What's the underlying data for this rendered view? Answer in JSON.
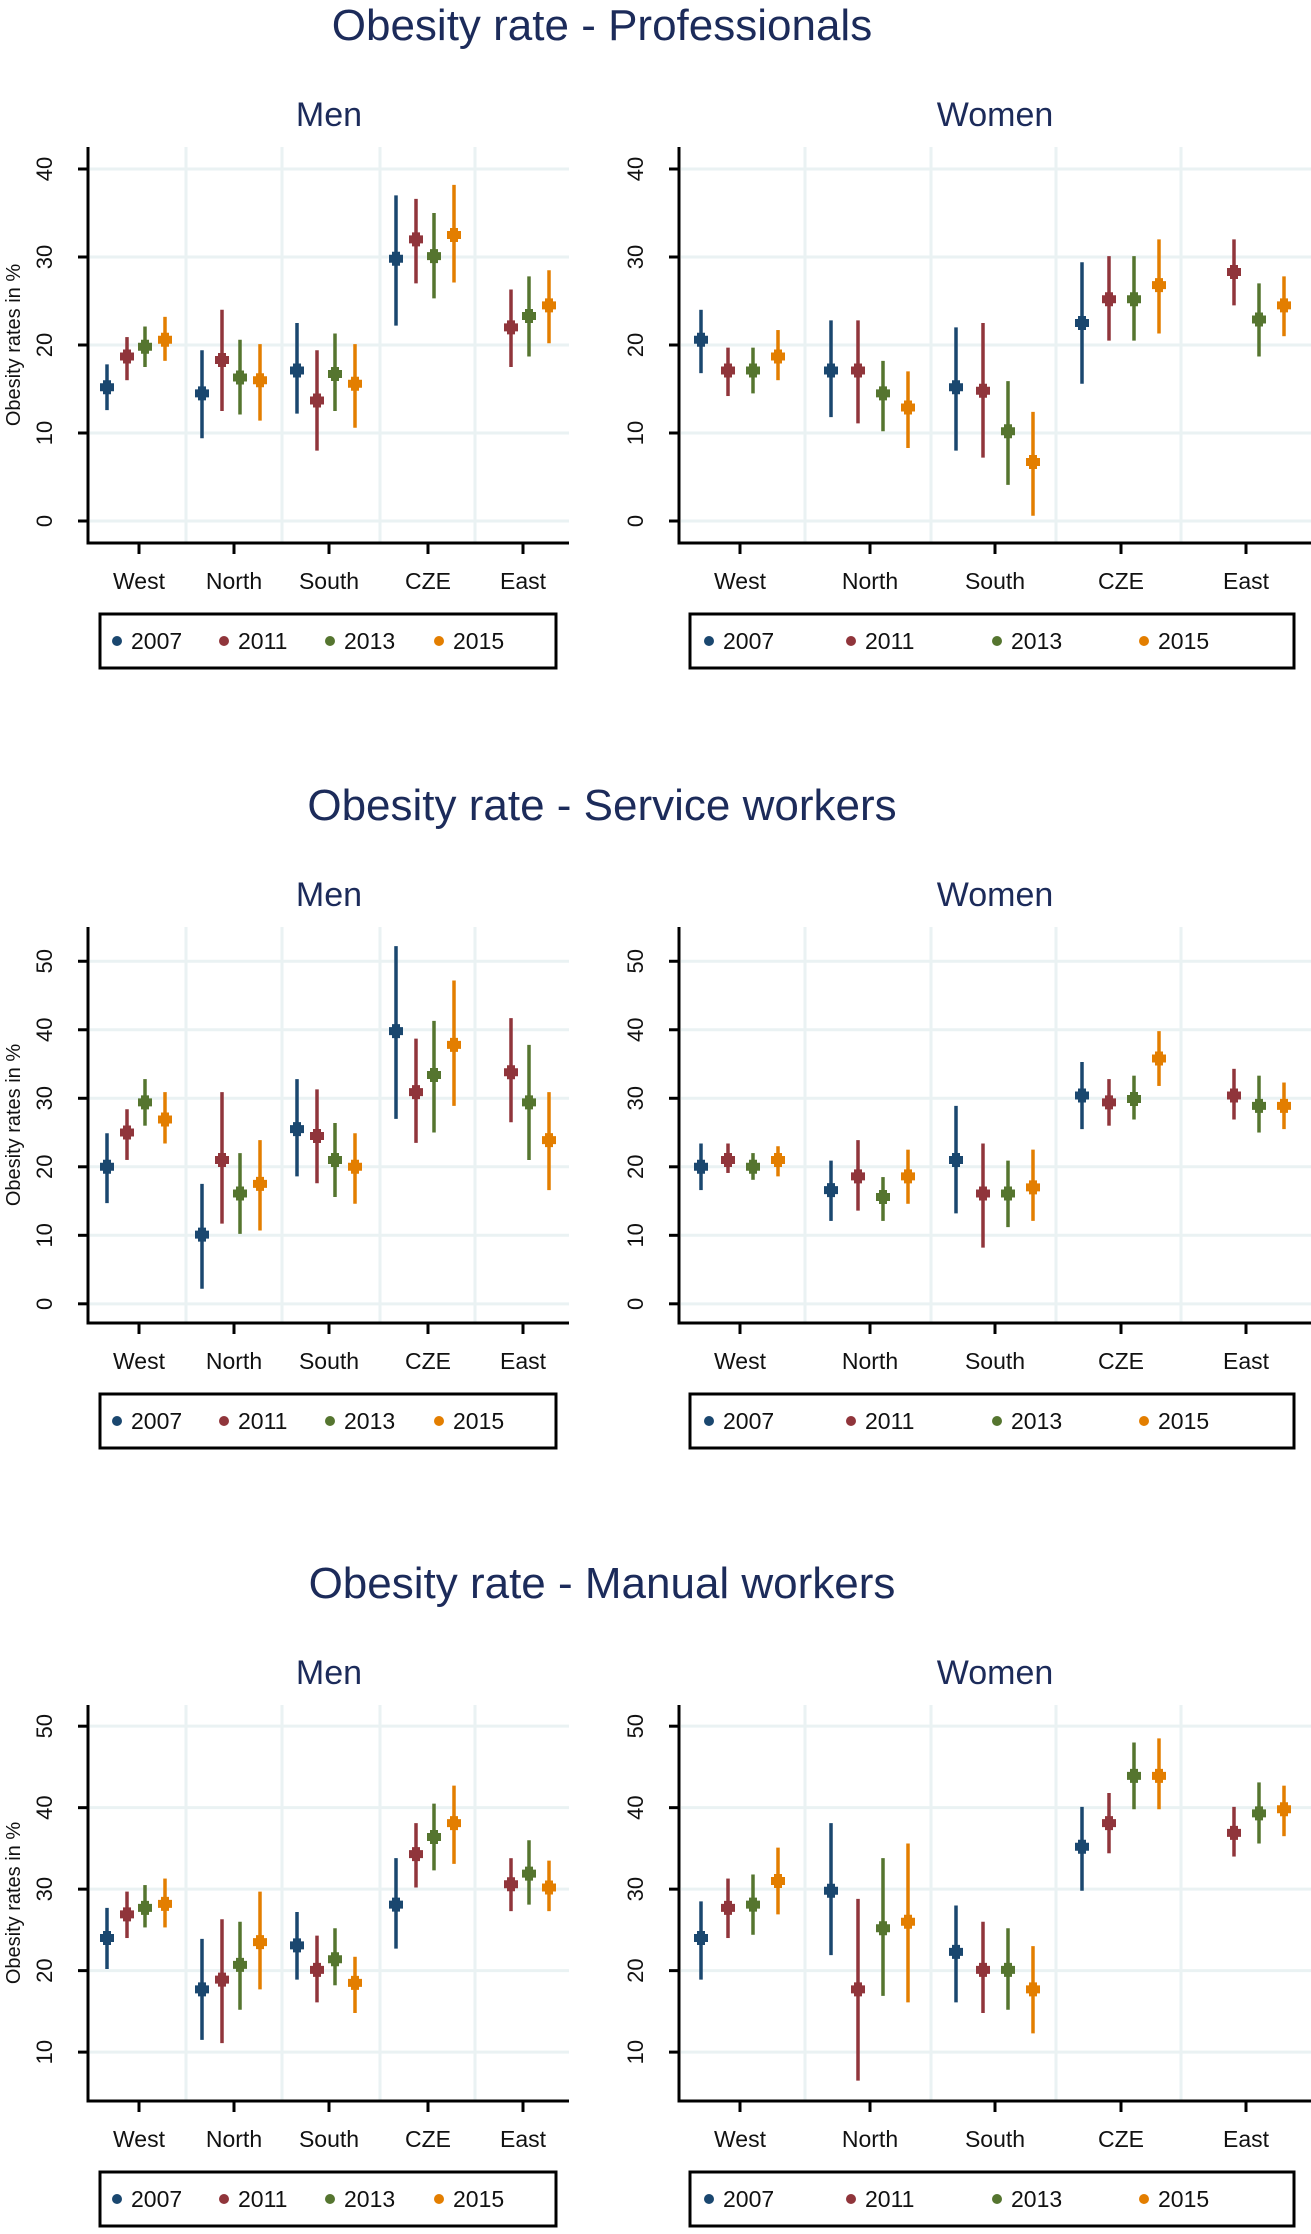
{
  "colors": {
    "2007": "#1a476f",
    "2011": "#90353b",
    "2013": "#55752f",
    "2015": "#e37e00",
    "grid": "#eaf2f3",
    "axis": "#000000",
    "title": "#1c2b5a"
  },
  "chart_data": [
    {
      "type": "scatter",
      "error_bars": true,
      "title": "Obesity rate - Professionals",
      "subtitle": "Men",
      "ylabel": "Obesity rates in %",
      "ylim": [
        -2.5,
        42.5
      ],
      "yticks": [
        0,
        10,
        20,
        30,
        40
      ],
      "grid": true,
      "legend": "bottom",
      "categories": [
        "West",
        "North",
        "South",
        "CZE",
        "East"
      ],
      "series": [
        {
          "name": "2007",
          "values": [
            15.2,
            14.5,
            17.1,
            29.8,
            null
          ],
          "ci_low": [
            12.6,
            9.4,
            12.2,
            22.2,
            null
          ],
          "ci_high": [
            17.8,
            19.4,
            22.5,
            37.0,
            null
          ]
        },
        {
          "name": "2011",
          "values": [
            18.7,
            18.3,
            13.7,
            32.0,
            22.0
          ],
          "ci_low": [
            16.0,
            12.5,
            8.0,
            27.0,
            17.5
          ],
          "ci_high": [
            20.9,
            24.0,
            19.4,
            36.6,
            26.3
          ]
        },
        {
          "name": "2013",
          "values": [
            19.8,
            16.3,
            16.7,
            30.1,
            23.3
          ],
          "ci_low": [
            17.5,
            12.1,
            12.5,
            25.3,
            18.7
          ],
          "ci_high": [
            22.1,
            20.6,
            21.3,
            35.0,
            27.8
          ]
        },
        {
          "name": "2015",
          "values": [
            20.6,
            16.0,
            15.6,
            32.5,
            24.5
          ],
          "ci_low": [
            18.2,
            11.4,
            10.6,
            27.1,
            20.2
          ],
          "ci_high": [
            23.2,
            20.1,
            20.1,
            38.2,
            28.5
          ]
        }
      ]
    },
    {
      "type": "scatter",
      "error_bars": true,
      "title": "Obesity rate - Professionals",
      "subtitle": "Women",
      "ylabel": "",
      "ylim": [
        -2.5,
        42.5
      ],
      "yticks": [
        0,
        10,
        20,
        30,
        40
      ],
      "grid": true,
      "legend": "bottom",
      "categories": [
        "West",
        "North",
        "South",
        "CZE",
        "East"
      ],
      "series": [
        {
          "name": "2007",
          "values": [
            20.6,
            17.1,
            15.2,
            22.5,
            null
          ],
          "ci_low": [
            16.8,
            11.8,
            8.0,
            15.6,
            null
          ],
          "ci_high": [
            24.0,
            22.8,
            22.0,
            29.4,
            null
          ]
        },
        {
          "name": "2011",
          "values": [
            17.1,
            17.1,
            14.8,
            25.2,
            28.3
          ],
          "ci_low": [
            14.2,
            11.1,
            7.2,
            20.5,
            24.5
          ],
          "ci_high": [
            19.7,
            22.8,
            22.5,
            30.1,
            32.0
          ]
        },
        {
          "name": "2013",
          "values": [
            17.1,
            14.5,
            10.2,
            25.2,
            22.9
          ],
          "ci_low": [
            14.5,
            10.2,
            4.1,
            20.5,
            18.7
          ],
          "ci_high": [
            19.7,
            18.2,
            15.9,
            30.1,
            27.0
          ]
        },
        {
          "name": "2015",
          "values": [
            18.7,
            12.9,
            6.7,
            26.8,
            24.5
          ],
          "ci_low": [
            16.0,
            8.3,
            0.6,
            21.3,
            21.0
          ],
          "ci_high": [
            21.7,
            17.0,
            12.4,
            32.0,
            27.8
          ]
        }
      ]
    },
    {
      "type": "scatter",
      "error_bars": true,
      "title": "Obesity rate - Service workers",
      "subtitle": "Men",
      "ylabel": "Obesity rates in %",
      "ylim": [
        -2.8,
        55
      ],
      "yticks": [
        0,
        10,
        20,
        30,
        40,
        50
      ],
      "grid": true,
      "legend": "bottom",
      "categories": [
        "West",
        "North",
        "South",
        "CZE",
        "East"
      ],
      "series": [
        {
          "name": "2007",
          "values": [
            20.0,
            10.1,
            25.5,
            39.8,
            null
          ],
          "ci_low": [
            14.7,
            2.2,
            18.6,
            27.0,
            null
          ],
          "ci_high": [
            24.9,
            17.5,
            32.8,
            52.2,
            null
          ]
        },
        {
          "name": "2011",
          "values": [
            25.0,
            21.0,
            24.5,
            30.9,
            33.8
          ],
          "ci_low": [
            21.0,
            11.7,
            17.6,
            23.5,
            26.5
          ],
          "ci_high": [
            28.4,
            30.9,
            31.3,
            38.7,
            41.7
          ]
        },
        {
          "name": "2013",
          "values": [
            29.4,
            16.1,
            21.0,
            33.4,
            29.4
          ],
          "ci_low": [
            26.0,
            10.2,
            15.6,
            25.0,
            21.0
          ],
          "ci_high": [
            32.8,
            22.0,
            26.4,
            41.3,
            37.8
          ]
        },
        {
          "name": "2015",
          "values": [
            26.9,
            17.5,
            20.0,
            37.8,
            23.9
          ],
          "ci_low": [
            23.4,
            10.7,
            14.6,
            28.9,
            16.6
          ],
          "ci_high": [
            30.9,
            23.9,
            24.9,
            47.2,
            30.9
          ]
        }
      ]
    },
    {
      "type": "scatter",
      "error_bars": true,
      "title": "Obesity rate - Service workers",
      "subtitle": "Women",
      "ylabel": "",
      "ylim": [
        -2.8,
        55
      ],
      "yticks": [
        0,
        10,
        20,
        30,
        40,
        50
      ],
      "grid": true,
      "legend": "bottom",
      "categories": [
        "West",
        "North",
        "South",
        "CZE",
        "East"
      ],
      "series": [
        {
          "name": "2007",
          "values": [
            20.0,
            16.6,
            21.0,
            30.4,
            null
          ],
          "ci_low": [
            16.6,
            12.1,
            13.2,
            25.5,
            null
          ],
          "ci_high": [
            23.4,
            20.9,
            28.9,
            35.3,
            null
          ]
        },
        {
          "name": "2011",
          "values": [
            21.0,
            18.6,
            16.1,
            29.4,
            30.4
          ],
          "ci_low": [
            19.1,
            13.6,
            8.2,
            26.0,
            26.9
          ],
          "ci_high": [
            23.4,
            23.9,
            23.4,
            32.8,
            34.3
          ]
        },
        {
          "name": "2013",
          "values": [
            20.0,
            15.6,
            16.1,
            29.9,
            28.9
          ],
          "ci_low": [
            18.1,
            12.1,
            11.2,
            26.9,
            25.0
          ],
          "ci_high": [
            22.0,
            18.5,
            20.9,
            33.3,
            33.3
          ]
        },
        {
          "name": "2015",
          "values": [
            21.0,
            18.6,
            17.0,
            35.8,
            28.9
          ],
          "ci_low": [
            18.6,
            14.6,
            12.1,
            31.8,
            25.5
          ],
          "ci_high": [
            23.0,
            22.5,
            22.5,
            39.8,
            32.3
          ]
        }
      ]
    },
    {
      "type": "scatter",
      "error_bars": true,
      "title": "Obesity rate - Manual workers",
      "subtitle": "Men",
      "ylabel": "Obesity rates in %",
      "ylim": [
        4,
        52.6
      ],
      "yticks": [
        10,
        20,
        30,
        40,
        50
      ],
      "grid": true,
      "legend": "bottom",
      "categories": [
        "West",
        "North",
        "South",
        "CZE",
        "East"
      ],
      "series": [
        {
          "name": "2007",
          "values": [
            24.0,
            17.7,
            23.1,
            28.1,
            null
          ],
          "ci_low": [
            20.2,
            11.5,
            18.9,
            22.7,
            null
          ],
          "ci_high": [
            27.7,
            23.9,
            27.2,
            33.8,
            null
          ]
        },
        {
          "name": "2011",
          "values": [
            26.9,
            18.9,
            20.1,
            34.3,
            30.6
          ],
          "ci_low": [
            24.0,
            11.1,
            16.1,
            30.2,
            27.3
          ],
          "ci_high": [
            29.7,
            26.3,
            24.3,
            38.1,
            33.8
          ]
        },
        {
          "name": "2013",
          "values": [
            27.7,
            20.7,
            21.4,
            36.4,
            31.9
          ],
          "ci_low": [
            25.3,
            15.2,
            18.2,
            32.3,
            28.1
          ],
          "ci_high": [
            30.5,
            26.0,
            25.2,
            40.5,
            36.0
          ]
        },
        {
          "name": "2015",
          "values": [
            28.2,
            23.5,
            18.5,
            38.1,
            30.2
          ],
          "ci_low": [
            25.3,
            17.7,
            14.8,
            33.1,
            27.3
          ],
          "ci_high": [
            31.3,
            29.7,
            21.7,
            42.7,
            33.5
          ]
        }
      ]
    },
    {
      "type": "scatter",
      "error_bars": true,
      "title": "Obesity rate - Manual workers",
      "subtitle": "Women",
      "ylabel": "",
      "ylim": [
        4,
        52.6
      ],
      "yticks": [
        10,
        20,
        30,
        40,
        50
      ],
      "grid": true,
      "legend": "bottom",
      "categories": [
        "West",
        "North",
        "South",
        "CZE",
        "East"
      ],
      "series": [
        {
          "name": "2007",
          "values": [
            24.0,
            29.8,
            22.3,
            35.2,
            null
          ],
          "ci_low": [
            18.9,
            21.9,
            16.1,
            29.8,
            null
          ],
          "ci_high": [
            28.5,
            38.1,
            28.0,
            40.1,
            null
          ]
        },
        {
          "name": "2011",
          "values": [
            27.7,
            17.7,
            20.1,
            38.1,
            36.9
          ],
          "ci_low": [
            24.0,
            6.5,
            14.8,
            34.4,
            34.0
          ],
          "ci_high": [
            31.3,
            28.8,
            26.0,
            41.8,
            40.1
          ]
        },
        {
          "name": "2013",
          "values": [
            28.1,
            25.2,
            20.1,
            43.9,
            39.3
          ],
          "ci_low": [
            24.4,
            16.9,
            15.2,
            39.8,
            35.6
          ],
          "ci_high": [
            31.8,
            33.8,
            25.2,
            48.0,
            43.1
          ]
        },
        {
          "name": "2015",
          "values": [
            31.0,
            26.0,
            17.7,
            43.9,
            39.8
          ],
          "ci_low": [
            26.9,
            16.1,
            12.3,
            39.8,
            36.5
          ],
          "ci_high": [
            35.1,
            35.6,
            23.0,
            48.5,
            42.7
          ]
        }
      ]
    }
  ]
}
